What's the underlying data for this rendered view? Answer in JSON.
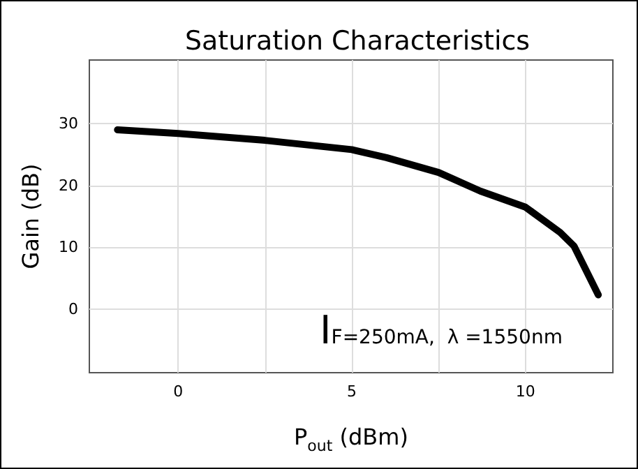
{
  "chart_data": {
    "type": "line",
    "title": "Saturation Characteristics",
    "xlabel": "P$_{out}$ (dBm)",
    "ylabel": "Gain (dB)",
    "annotations": [
      "I$_{F}$=250mA,  λ =1550nm"
    ],
    "x": [
      -1.75,
      0,
      2.5,
      5,
      6,
      7.5,
      8.7,
      10,
      11,
      11.4,
      12.1
    ],
    "series": [
      {
        "color": "#000000",
        "values": [
          29.0,
          28.4,
          27.3,
          25.8,
          24.5,
          22.1,
          19.1,
          16.5,
          12.4,
          10.2,
          2.3
        ]
      }
    ],
    "xlim": [
      -2.56,
      12.52
    ],
    "ylim": [
      -10.3,
      40.3
    ],
    "xticks": [
      0,
      {
        "value": 2.5,
        "label": null
      },
      5,
      {
        "value": 7.5,
        "label": null
      },
      10
    ],
    "yticks": [
      0,
      10,
      20,
      30
    ],
    "grid": true,
    "marker": "none",
    "line_style": "solid"
  }
}
